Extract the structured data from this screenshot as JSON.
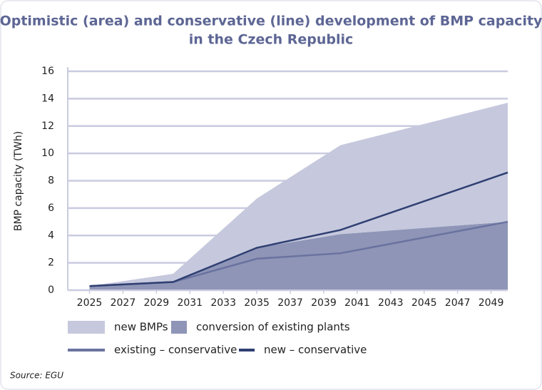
{
  "chart_data": {
    "type": "area",
    "title": [
      "Optimistic (area) and conservative (line) development of BMP capacity",
      "in the Czech Republic"
    ],
    "y_label": "BMP capacity (TWh)",
    "source": "Source: EGU",
    "x": [
      2025,
      2030,
      2035,
      2040,
      2050
    ],
    "xlim": [
      2023.7,
      2050
    ],
    "xticks": [
      2025,
      2027,
      2029,
      2031,
      2033,
      2035,
      2037,
      2039,
      2041,
      2043,
      2045,
      2047,
      2049
    ],
    "ylim": [
      0,
      16
    ],
    "yticks": [
      0,
      2,
      4,
      6,
      8,
      10,
      12,
      14,
      16
    ],
    "grid": true,
    "stacked_areas": true,
    "series": [
      {
        "name": "new BMPs",
        "kind": "area",
        "color": "#c6c9dd",
        "values": [
          0,
          0.6,
          3.6,
          6.5,
          8.7
        ]
      },
      {
        "name": "conversion of existing plants",
        "kind": "area",
        "color": "#8e95b7",
        "values": [
          0.3,
          0.6,
          3.1,
          4.1,
          5.0
        ]
      },
      {
        "name": "existing – conservative",
        "kind": "line",
        "color": "#6a739f",
        "values": [
          0.3,
          0.6,
          2.3,
          2.7,
          5.0
        ]
      },
      {
        "name": "new – conservative",
        "kind": "line",
        "color": "#2f3f72",
        "values": [
          0.3,
          0.6,
          3.1,
          4.4,
          8.6
        ]
      }
    ]
  }
}
